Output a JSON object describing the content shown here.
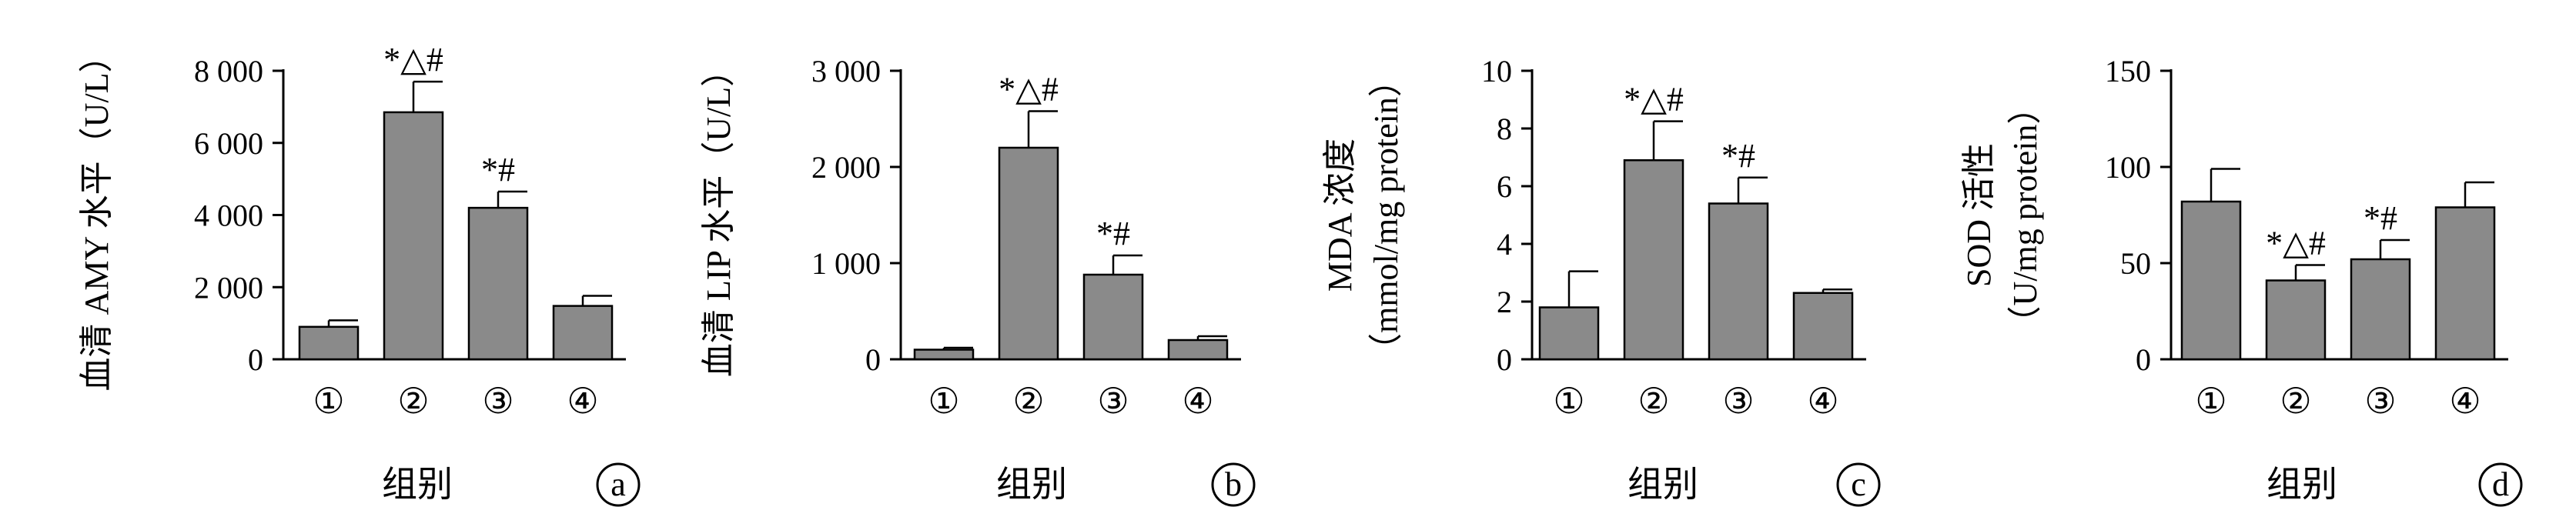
{
  "chart_data": [
    {
      "type": "bar",
      "panel": "a",
      "categories": [
        "①",
        "②",
        "③",
        "④"
      ],
      "values": [
        900,
        6850,
        4200,
        1480
      ],
      "errors": [
        180,
        850,
        450,
        280
      ],
      "annotations": [
        "",
        "*△#",
        "*#",
        ""
      ],
      "ylabel": "血清 AMY 水平（U/L）",
      "xlabel": "组别",
      "ylim": [
        0,
        8000
      ],
      "yticks": [
        0,
        2000,
        4000,
        6000,
        8000
      ],
      "ytick_labels": [
        "0",
        "2 000",
        "4 000",
        "6 000",
        "8 000"
      ]
    },
    {
      "type": "bar",
      "panel": "b",
      "categories": [
        "①",
        "②",
        "③",
        "④"
      ],
      "values": [
        100,
        2200,
        880,
        200
      ],
      "errors": [
        20,
        380,
        200,
        40
      ],
      "annotations": [
        "",
        "*△#",
        "*#",
        ""
      ],
      "ylabel": "血清 LIP 水平（U/L）",
      "xlabel": "组别",
      "ylim": [
        0,
        3000
      ],
      "yticks": [
        0,
        1000,
        2000,
        3000
      ],
      "ytick_labels": [
        "0",
        "1 000",
        "2 000",
        "3 000"
      ]
    },
    {
      "type": "bar",
      "panel": "c",
      "categories": [
        "①",
        "②",
        "③",
        "④"
      ],
      "values": [
        1.8,
        6.9,
        5.4,
        2.3
      ],
      "errors": [
        1.25,
        1.35,
        0.9,
        0.12
      ],
      "annotations": [
        "",
        "*△#",
        "*#",
        ""
      ],
      "ylabel": [
        "MDA 浓度",
        "（mmol/mg protein）"
      ],
      "xlabel": "组别",
      "ylim": [
        0,
        10
      ],
      "yticks": [
        0,
        2,
        4,
        6,
        8,
        10
      ],
      "ytick_labels": [
        "0",
        "2",
        "4",
        "6",
        "8",
        "10"
      ]
    },
    {
      "type": "bar",
      "panel": "d",
      "categories": [
        "①",
        "②",
        "③",
        "④"
      ],
      "values": [
        82,
        41,
        52,
        79
      ],
      "errors": [
        17,
        8,
        10,
        13
      ],
      "annotations": [
        "",
        "*△#",
        "*#",
        ""
      ],
      "ylabel": [
        "SOD 活性",
        "（U/mg protein）"
      ],
      "xlabel": "组别",
      "ylim": [
        0,
        150
      ],
      "yticks": [
        0,
        50,
        100,
        150
      ],
      "ytick_labels": [
        "0",
        "50",
        "100",
        "150"
      ]
    }
  ]
}
